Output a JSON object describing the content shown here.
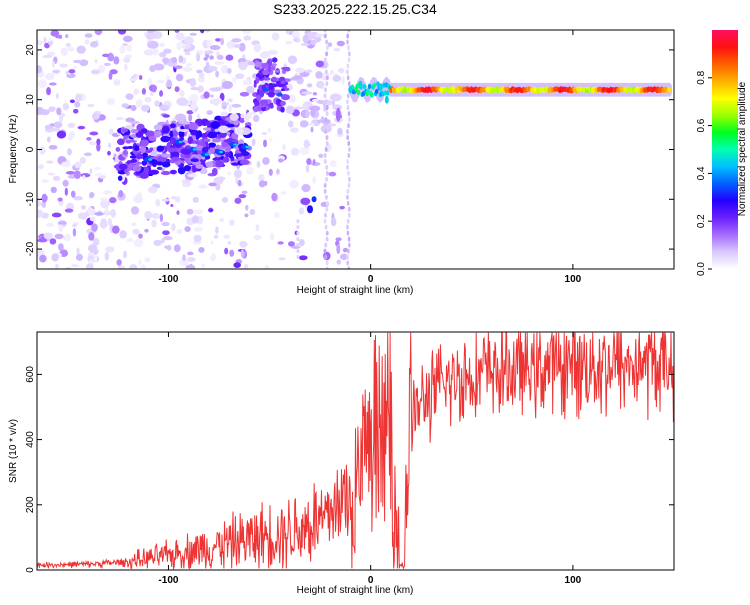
{
  "figure": {
    "title": "S233.2025.222.15.25.C34"
  },
  "chart_data": [
    {
      "type": "heatmap",
      "title": "S233.2025.222.15.25.C34",
      "xlabel": "Height of straight line (km)",
      "ylabel": "Frequency (Hz)",
      "xlim": [
        -165,
        150
      ],
      "ylim": [
        -24,
        24
      ],
      "xticks": [
        -100,
        0,
        100
      ],
      "yticks": [
        -20,
        -10,
        0,
        10,
        20
      ],
      "colorbar": {
        "label": "Normalized spectral amplitude",
        "range": [
          0,
          1
        ],
        "ticks": [
          0.0,
          0.2,
          0.4,
          0.6,
          0.8
        ],
        "colormap": [
          "#ffffff",
          "#d9c9ff",
          "#a76cff",
          "#6b20ff",
          "#2400ff",
          "#0060ff",
          "#00c0ff",
          "#00ffb0",
          "#00ff20",
          "#9aff00",
          "#ffff00",
          "#ffb000",
          "#ff6000",
          "#ff1010",
          "#ff1060"
        ]
      },
      "features": [
        {
          "name": "main",
          "x_range": [
            -15,
            150
          ],
          "freq_hz": 12
        }
      ]
    },
    {
      "type": "line",
      "xlabel": "Height of straight line (km)",
      "ylabel": "SNR (10 * v/v)",
      "xlim": [
        -165,
        150
      ],
      "ylim": [
        0,
        730
      ],
      "xticks": [
        -100,
        0,
        100
      ],
      "yticks": [
        0,
        200,
        400,
        600
      ],
      "series": [
        {
          "color": "#ee3333",
          "x": [
            -165,
            -140,
            -120,
            -100,
            -80,
            -60,
            -40,
            -20,
            -10,
            0,
            10,
            15,
            20,
            30,
            40,
            50,
            60,
            80,
            100,
            120,
            150
          ],
          "y": [
            15,
            18,
            25,
            45,
            70,
            95,
            120,
            160,
            220,
            330,
            430,
            20,
            480,
            540,
            580,
            600,
            610,
            620,
            630,
            630,
            635
          ]
        }
      ]
    }
  ]
}
